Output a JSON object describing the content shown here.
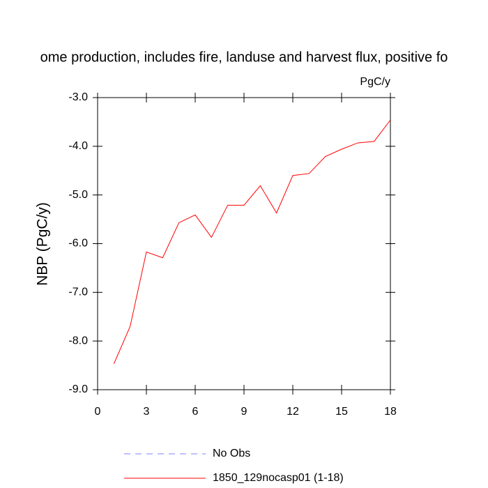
{
  "chart_data": {
    "type": "line",
    "title": "ome production, includes fire, landuse and harvest flux, positive fo",
    "unit_label": "PgC/y",
    "y_label": "NBP  (PgC/y)",
    "x": [
      1,
      2,
      3,
      4,
      5,
      6,
      7,
      8,
      9,
      10,
      11,
      12,
      13,
      14,
      15,
      16,
      17,
      18
    ],
    "series": [
      {
        "name": "1850_129nocasp01 (1-18)",
        "color": "#ff0000",
        "values": [
          -8.47,
          -7.7,
          -6.17,
          -6.29,
          -5.57,
          -5.41,
          -5.87,
          -5.21,
          -5.21,
          -4.81,
          -5.37,
          -4.6,
          -4.56,
          -4.21,
          -4.06,
          -3.93,
          -3.9,
          -3.46
        ]
      }
    ],
    "obs_legend": {
      "name": "No Obs",
      "color": "#8080ff",
      "dashed": true
    },
    "xlim": [
      0,
      18
    ],
    "xticks": [
      0,
      3,
      6,
      9,
      12,
      15,
      18
    ],
    "ylim": [
      -9,
      -3
    ],
    "yticks": [
      {
        "value": -9,
        "label": "-9.0"
      },
      {
        "value": -8,
        "label": "-8.0"
      },
      {
        "value": -7,
        "label": "-7.0"
      },
      {
        "value": -6,
        "label": "-6.0"
      },
      {
        "value": -5,
        "label": "-5.0"
      },
      {
        "value": -4,
        "label": "-4.0"
      },
      {
        "value": -3,
        "label": "-3.0"
      }
    ]
  }
}
